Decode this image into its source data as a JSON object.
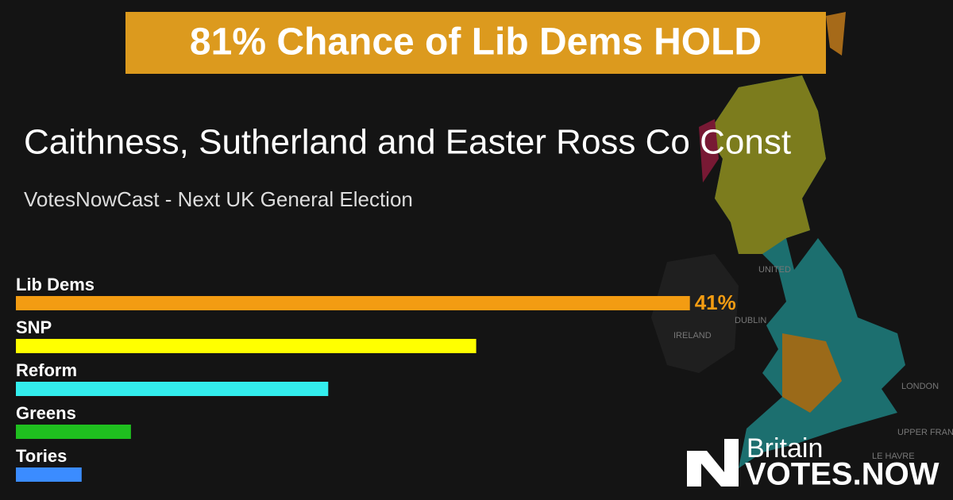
{
  "chart_data": {
    "type": "bar",
    "orientation": "horizontal",
    "headline": "81% Chance of Lib Dems HOLD",
    "title": "Caithness, Sutherland and Easter Ross Co Const",
    "subtitle": "VotesNowCast - Next UK General Election",
    "categories": [
      "Lib Dems",
      "SNP",
      "Reform",
      "Greens",
      "Tories"
    ],
    "values": [
      41,
      28,
      19,
      7,
      4
    ],
    "value_labels": [
      "41%",
      null,
      null,
      null,
      null
    ],
    "colors": [
      "#f39c12",
      "#ffff00",
      "#33eded",
      "#1fbf1f",
      "#3b8cff"
    ]
  },
  "map_labels": [
    "UNITED",
    "DUBLIN",
    "IRELAND",
    "LONDON",
    "UPPER FRANCE",
    "LE HAVRE"
  ],
  "brand": {
    "line1": "Britain",
    "line2": "VOTES.NOW"
  }
}
